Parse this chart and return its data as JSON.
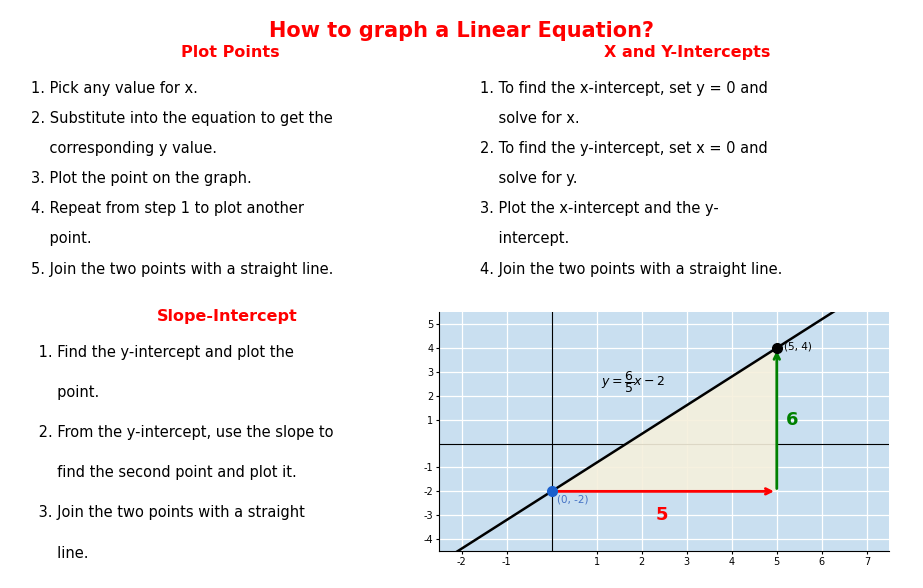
{
  "title": "How to graph a Linear Equation?",
  "title_color": "#ff0000",
  "title_fontsize": 15,
  "box_border_color": "#4472c4",
  "section1_title": "Plot Points",
  "section1_title_color": "#ff0000",
  "section2_title": "X and Y-Intercepts",
  "section2_title_color": "#ff0000",
  "section3_title": "Slope-Intercept",
  "section3_title_color": "#ff0000",
  "lines1": [
    "1. Pick any value for x.",
    "2. Substitute into the equation to get the",
    "    corresponding y value.",
    "3. Plot the point on the graph.",
    "4. Repeat from step 1 to plot another",
    "    point.",
    "5. Join the two points with a straight line."
  ],
  "lines2": [
    "1. To find the x-intercept, set y = 0 and",
    "    solve for x.",
    "2. To find the y-intercept, set x = 0 and",
    "    solve for y.",
    "3. Plot the x-intercept and the y-",
    "    intercept.",
    "4. Join the two points with a straight line."
  ],
  "lines3": [
    " 1. Find the y-intercept and plot the",
    "     point.",
    " 2. From the y-intercept, use the slope to",
    "     find the second point and plot it.",
    " 3. Join the two points with a straight",
    "     line."
  ],
  "graph_bg_color": "#c9dff0",
  "graph_grid_color": "#ffffff",
  "arrow_h_color": "#ff0000",
  "arrow_v_color": "#008000",
  "triangle_fill": "#f5f0dc",
  "dot1_color": "#1a5fcc",
  "dot2_color": "#000000",
  "text_fontsize": 10.5,
  "title_fs": 11.5
}
